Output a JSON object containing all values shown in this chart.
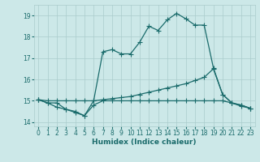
{
  "xlabel": "Humidex (Indice chaleur)",
  "background_color": "#cce8e8",
  "grid_color": "#aacccc",
  "line_color": "#1a6b6b",
  "xlim": [
    -0.5,
    23.5
  ],
  "ylim": [
    13.8,
    19.5
  ],
  "yticks": [
    14,
    15,
    16,
    17,
    18,
    19
  ],
  "xticks": [
    0,
    1,
    2,
    3,
    4,
    5,
    6,
    7,
    8,
    9,
    10,
    11,
    12,
    13,
    14,
    15,
    16,
    17,
    18,
    19,
    20,
    21,
    22,
    23
  ],
  "line1_x": [
    0,
    1,
    2,
    3,
    4,
    5,
    6,
    7,
    8,
    9,
    10,
    11,
    12,
    13,
    14,
    15,
    16,
    17,
    18,
    19,
    20,
    21,
    22,
    23
  ],
  "line1_y": [
    15.05,
    14.9,
    14.9,
    14.6,
    14.5,
    14.3,
    15.0,
    17.3,
    17.4,
    17.2,
    17.2,
    17.75,
    18.5,
    18.3,
    18.8,
    19.1,
    18.85,
    18.55,
    18.55,
    16.55,
    15.3,
    14.9,
    14.75,
    14.65
  ],
  "line2_x": [
    0,
    1,
    2,
    3,
    4,
    5,
    6,
    7,
    8,
    9,
    10,
    11,
    12,
    13,
    14,
    15,
    16,
    17,
    18,
    19,
    20,
    21,
    22,
    23
  ],
  "line2_y": [
    15.05,
    15.0,
    15.0,
    15.0,
    15.0,
    15.0,
    15.0,
    15.05,
    15.1,
    15.15,
    15.2,
    15.3,
    15.4,
    15.5,
    15.6,
    15.7,
    15.8,
    15.95,
    16.1,
    16.5,
    15.3,
    14.9,
    14.8,
    14.65
  ],
  "line3_x": [
    0,
    1,
    2,
    3,
    4,
    5,
    6,
    7,
    8,
    9,
    10,
    11,
    12,
    13,
    14,
    15,
    16,
    17,
    18,
    19,
    20,
    21,
    22,
    23
  ],
  "line3_y": [
    15.05,
    14.9,
    14.7,
    14.6,
    14.45,
    14.3,
    14.8,
    15.0,
    15.0,
    15.0,
    15.0,
    15.0,
    15.0,
    15.0,
    15.0,
    15.0,
    15.0,
    15.0,
    15.0,
    15.0,
    15.0,
    14.9,
    14.8,
    14.65
  ],
  "marker_size": 2.5,
  "linewidth": 0.9
}
